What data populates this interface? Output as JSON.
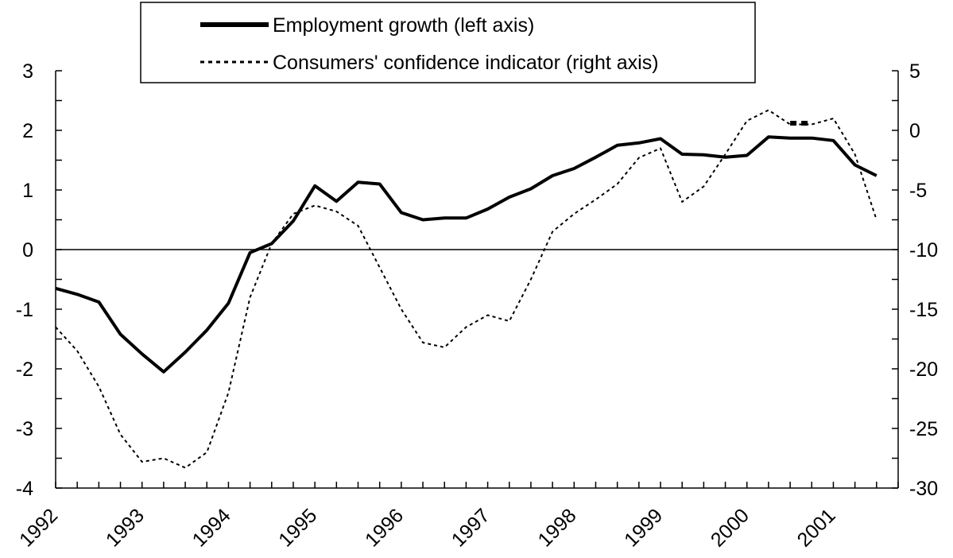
{
  "chart_data": {
    "type": "line",
    "x": [
      "1992Q1",
      "1992Q2",
      "1992Q3",
      "1992Q4",
      "1993Q1",
      "1993Q2",
      "1993Q3",
      "1993Q4",
      "1994Q1",
      "1994Q2",
      "1994Q3",
      "1994Q4",
      "1995Q1",
      "1995Q2",
      "1995Q3",
      "1995Q4",
      "1996Q1",
      "1996Q2",
      "1996Q3",
      "1996Q4",
      "1997Q1",
      "1997Q2",
      "1997Q3",
      "1997Q4",
      "1998Q1",
      "1998Q2",
      "1998Q3",
      "1998Q4",
      "1999Q1",
      "1999Q2",
      "1999Q3",
      "1999Q4",
      "2000Q1",
      "2000Q2",
      "2000Q3",
      "2000Q4",
      "2001Q1",
      "2001Q2",
      "2001Q3",
      "2001Q4"
    ],
    "x_tick_labels": [
      "1992",
      "1993",
      "1994",
      "1995",
      "1996",
      "1997",
      "1998",
      "1999",
      "2000",
      "2001"
    ],
    "series": [
      {
        "name": "Employment growth (left axis)",
        "axis": "left",
        "style": "solid-thick",
        "color": "#000000",
        "values": [
          -0.65,
          -0.75,
          -0.88,
          -1.42,
          -1.75,
          -2.05,
          -1.72,
          -1.35,
          -0.9,
          -0.05,
          0.1,
          0.48,
          1.07,
          0.81,
          1.13,
          1.1,
          0.62,
          0.5,
          0.53,
          0.53,
          0.68,
          0.88,
          1.02,
          1.24,
          1.36,
          1.55,
          1.75,
          1.79,
          1.86,
          1.6,
          1.59,
          1.55,
          1.58,
          1.89,
          1.87,
          1.87,
          1.83,
          1.42,
          1.24,
          null
        ]
      },
      {
        "name": "Consumers' confidence indicator (right axis)",
        "axis": "right",
        "style": "dotted",
        "color": "#000000",
        "values": [
          -16.5,
          -18.5,
          -21.5,
          -25.5,
          -27.8,
          -27.5,
          -28.3,
          -27.0,
          -22.0,
          -14.0,
          -9.5,
          -7.0,
          -6.3,
          -6.8,
          -8.0,
          -11.5,
          -15.0,
          -17.8,
          -18.2,
          -16.5,
          -15.5,
          -16.0,
          -12.5,
          -8.5,
          -7.0,
          -5.8,
          -4.5,
          -2.3,
          -1.5,
          -6.0,
          -4.7,
          -2.0,
          0.8,
          1.7,
          0.5,
          0.5,
          1.0,
          -2.0,
          -7.5,
          null
        ]
      }
    ],
    "extra_segment": {
      "axis": "right",
      "x_from": "2000Q3",
      "x_to": "2000Q4",
      "value": 0.6
    },
    "left_axis": {
      "ylim": [
        -4,
        3
      ],
      "ticks": [
        "3",
        "2",
        "1",
        "0",
        "-1",
        "-2",
        "-3",
        "-4"
      ]
    },
    "right_axis": {
      "ylim": [
        -30,
        5
      ],
      "ticks": [
        "5",
        "0",
        "-5",
        "-10",
        "-15",
        "-20",
        "-25",
        "-30"
      ]
    },
    "zero_line": true,
    "grid": false,
    "legend_position": "top-center"
  }
}
